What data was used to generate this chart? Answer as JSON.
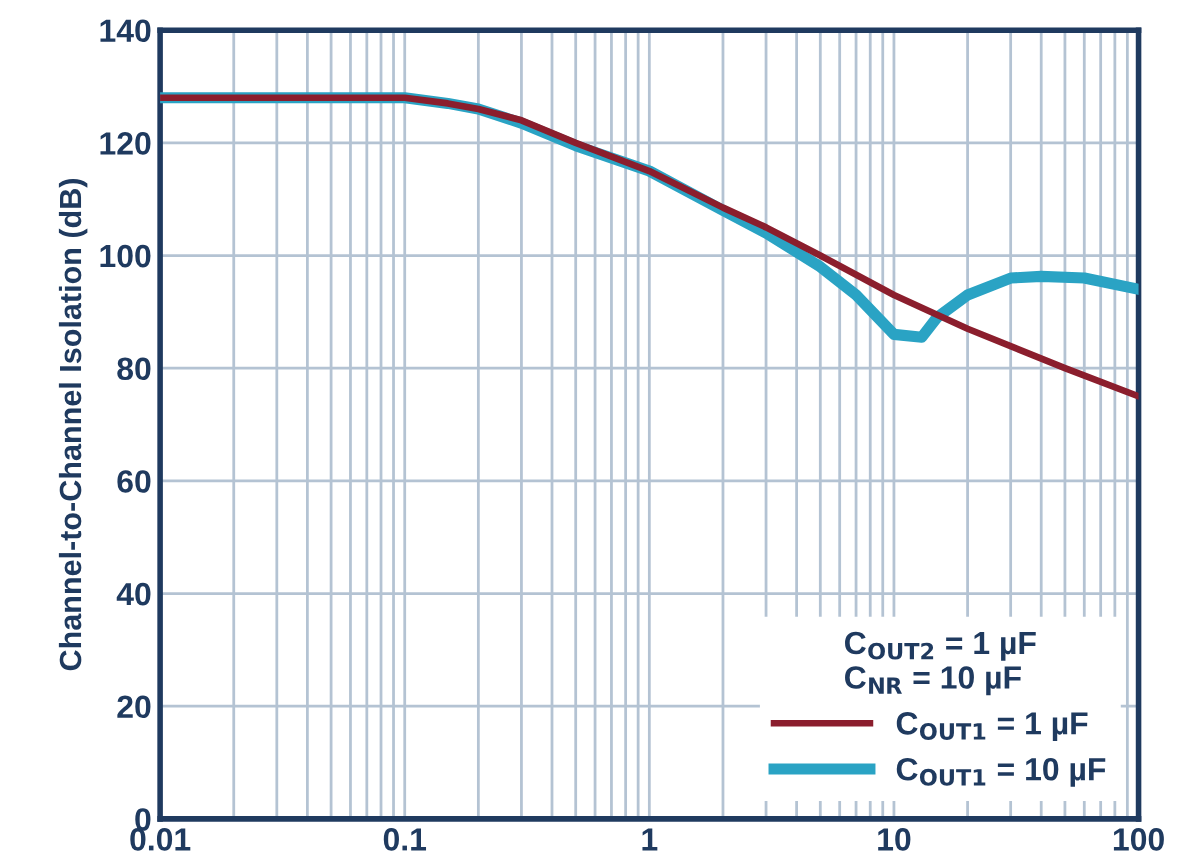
{
  "chart_data": {
    "type": "line",
    "ylabel": "Channel-to-Channel Isolation (dB)",
    "log": "x",
    "xlim": [
      0.01,
      100
    ],
    "xticks": [
      0.01,
      0.1,
      1,
      10,
      100
    ],
    "ylim": [
      0,
      140
    ],
    "yticks": [
      0,
      20,
      40,
      60,
      80,
      100,
      120,
      140
    ],
    "grid": true,
    "legend": "bottom right",
    "legend_title": "C$_{OUT2}$ = 1 µF\nC$_{NR}$ = 10 µF",
    "line_style": "solid",
    "marker": "none",
    "series": [
      {
        "name": "C$_{OUT1}$ = 1 µF",
        "color": "#8b1e2d",
        "x": [
          0.01,
          0.1,
          0.15,
          0.2,
          0.3,
          0.5,
          1,
          2,
          3,
          5,
          10,
          20,
          50,
          100
        ],
        "values": [
          128,
          128,
          127,
          126,
          124,
          120,
          115,
          108.5,
          105,
          100,
          93,
          87,
          80,
          75
        ]
      },
      {
        "name": "C$_{OUT1}$ = 10 µF",
        "color": "#2aa3c4",
        "x": [
          0.01,
          0.1,
          0.15,
          0.2,
          0.3,
          0.5,
          1,
          2,
          3,
          5,
          7,
          10,
          13,
          15,
          20,
          30,
          40,
          60,
          100
        ],
        "values": [
          128,
          128,
          127,
          126,
          123.5,
          119.5,
          115,
          108,
          104,
          98,
          93,
          86,
          85.5,
          89,
          93,
          96,
          96.3,
          96,
          94
        ]
      }
    ]
  }
}
